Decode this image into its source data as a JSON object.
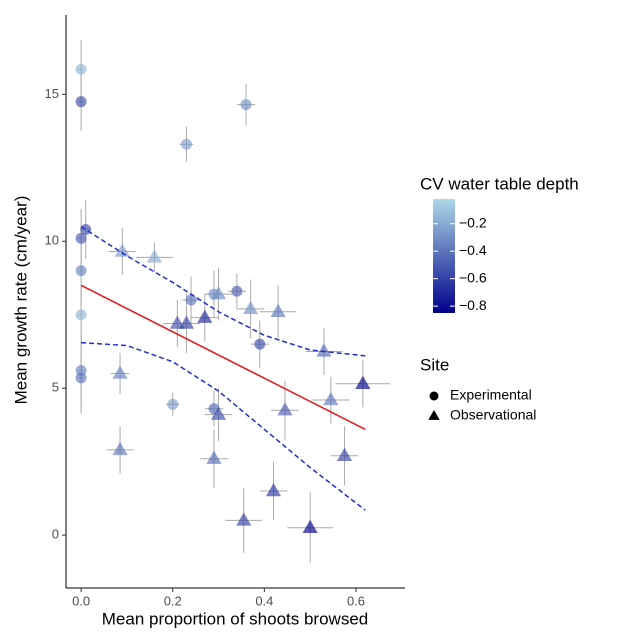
{
  "chart_data": {
    "type": "scatter",
    "x_label": "Mean proportion of shoots browsed",
    "y_label": "Mean growth rate (cm/year)",
    "xlim": [
      -0.033,
      0.707
    ],
    "ylim": [
      -1.8,
      17.7
    ],
    "xticks": [
      {
        "value": 0,
        "label": "0.0"
      },
      0.2,
      0.4,
      0.6
    ],
    "yticks": [
      0,
      5,
      10,
      15
    ],
    "colorbar": {
      "title": "CV water table depth",
      "low": "#00008b",
      "high": "#add8e6",
      "range": [
        -0.85,
        -0.02
      ],
      "ticks": [
        {
          "value": -0.2,
          "label": "−0.2"
        },
        {
          "value": -0.4,
          "label": "−0.4"
        },
        {
          "value": -0.6,
          "label": "−0.6"
        },
        {
          "value": -0.8,
          "label": "−0.8"
        }
      ]
    },
    "legend_title": "Site",
    "series": [
      {
        "name": "Experimental",
        "shape": "circle",
        "x": [
          0.0,
          0.0,
          0.36,
          0.23,
          0.01,
          0.0,
          0.0,
          0.0,
          0.24,
          0.29,
          0.34,
          0.39,
          0.0,
          0.0,
          0.2,
          0.29
        ],
        "values": [
          15.85,
          14.75,
          14.65,
          13.3,
          10.4,
          10.1,
          9.0,
          7.5,
          8.0,
          8.2,
          8.3,
          6.5,
          5.6,
          5.35,
          4.45,
          4.3
        ],
        "cv": [
          -0.15,
          -0.55,
          -0.3,
          -0.25,
          -0.55,
          -0.5,
          -0.35,
          -0.15,
          -0.4,
          -0.3,
          -0.5,
          -0.55,
          -0.35,
          -0.4,
          -0.25,
          -0.45
        ],
        "xerr": [
          0.005,
          0.005,
          0.02,
          0.015,
          0.01,
          0.005,
          0.005,
          0.005,
          0.02,
          0.02,
          0.02,
          0.02,
          0.005,
          0.005,
          0.015,
          0.02
        ],
        "yerr": [
          1.0,
          1.0,
          0.7,
          0.6,
          1.0,
          1.0,
          1.2,
          1.0,
          0.8,
          0.8,
          0.6,
          0.8,
          1.2,
          1.2,
          0.4,
          0.6
        ]
      },
      {
        "name": "Observational",
        "shape": "triangle",
        "x": [
          0.09,
          0.16,
          0.3,
          0.37,
          0.43,
          0.21,
          0.23,
          0.27,
          0.53,
          0.085,
          0.545,
          0.615,
          0.3,
          0.445,
          0.085,
          0.29,
          0.575,
          0.42,
          0.355,
          0.5
        ],
        "values": [
          9.65,
          9.45,
          8.2,
          7.7,
          7.6,
          7.2,
          7.2,
          7.4,
          6.25,
          5.5,
          4.6,
          5.15,
          4.1,
          4.25,
          2.9,
          2.6,
          2.7,
          1.5,
          0.5,
          0.25
        ],
        "cv": [
          -0.25,
          -0.2,
          -0.3,
          -0.3,
          -0.4,
          -0.55,
          -0.6,
          -0.7,
          -0.45,
          -0.35,
          -0.4,
          -0.85,
          -0.55,
          -0.5,
          -0.4,
          -0.45,
          -0.6,
          -0.65,
          -0.6,
          -0.85
        ],
        "xerr": [
          0.03,
          0.04,
          0.03,
          0.03,
          0.04,
          0.03,
          0.03,
          0.03,
          0.04,
          0.02,
          0.04,
          0.06,
          0.03,
          0.03,
          0.03,
          0.03,
          0.03,
          0.03,
          0.04,
          0.05
        ],
        "yerr": [
          0.8,
          0.5,
          0.9,
          1.0,
          0.9,
          0.8,
          1.0,
          0.8,
          0.8,
          0.7,
          0.8,
          0.8,
          0.9,
          1.0,
          0.8,
          1.0,
          1.0,
          1.0,
          1.1,
          1.2
        ]
      }
    ],
    "lines": [
      {
        "color": "#e41a1c",
        "dash": false,
        "x": [
          0.0,
          0.62
        ],
        "values": [
          8.5,
          3.6
        ]
      },
      {
        "color": "#1f2ecc",
        "dash": true,
        "x": [
          0.0,
          0.1,
          0.2,
          0.3,
          0.4,
          0.5,
          0.62
        ],
        "values": [
          10.5,
          9.5,
          8.6,
          7.6,
          6.8,
          6.3,
          6.1
        ]
      },
      {
        "color": "#1f2ecc",
        "dash": true,
        "x": [
          0.0,
          0.1,
          0.2,
          0.3,
          0.4,
          0.5,
          0.62
        ],
        "values": [
          6.55,
          6.45,
          5.9,
          4.9,
          3.6,
          2.3,
          0.85
        ]
      }
    ]
  }
}
